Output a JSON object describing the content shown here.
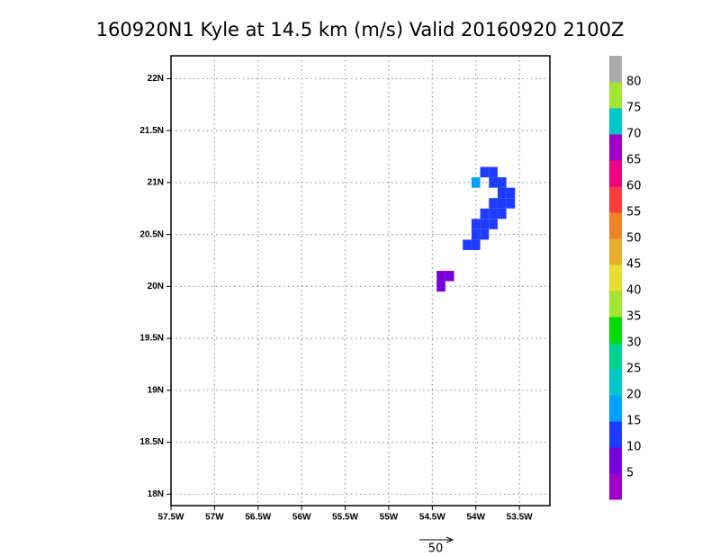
{
  "chart_data": {
    "type": "grid-map",
    "title": "160920N1 Kyle at 14.5 km (m/s) Valid 20160920 2100Z",
    "xlim": [
      -57.5,
      -53.15
    ],
    "ylim": [
      17.89,
      22.22
    ],
    "xticks": [
      {
        "value": -57.5,
        "label": "57.5W"
      },
      {
        "value": -57,
        "label": "57W"
      },
      {
        "value": -56.5,
        "label": "56.5W"
      },
      {
        "value": -56,
        "label": "56W"
      },
      {
        "value": -55.5,
        "label": "55.5W"
      },
      {
        "value": -55,
        "label": "55W"
      },
      {
        "value": -54.5,
        "label": "54.5W"
      },
      {
        "value": -54,
        "label": "54W"
      },
      {
        "value": -53.5,
        "label": "53.5W"
      }
    ],
    "yticks": [
      {
        "value": 18,
        "label": "18N"
      },
      {
        "value": 18.5,
        "label": "18.5N"
      },
      {
        "value": 19,
        "label": "19N"
      },
      {
        "value": 19.5,
        "label": "19.5N"
      },
      {
        "value": 20,
        "label": "20N"
      },
      {
        "value": 20.5,
        "label": "20.5N"
      },
      {
        "value": 21,
        "label": "21N"
      },
      {
        "value": 21.5,
        "label": "21.5N"
      },
      {
        "value": 22,
        "label": "22N"
      }
    ],
    "grid": true,
    "cells": {
      "lon": [
        -54.4,
        -54.3,
        -54.4,
        -54.1,
        -54.0,
        -54.0,
        -53.9,
        -54.0,
        -53.9,
        -53.8,
        -53.9,
        -53.8,
        -53.7,
        -53.8,
        -53.7,
        -53.6,
        -53.7,
        -53.6,
        -53.8,
        -53.7,
        -54.0,
        -53.9,
        -53.8
      ],
      "lat": [
        20.1,
        20.1,
        20.0,
        20.4,
        20.4,
        20.5,
        20.5,
        20.6,
        20.6,
        20.6,
        20.7,
        20.7,
        20.7,
        20.8,
        20.8,
        20.8,
        20.9,
        20.9,
        21.0,
        21.0,
        21.0,
        21.1,
        21.1
      ],
      "values": [
        8,
        8,
        8,
        12,
        12,
        12,
        12,
        12,
        12,
        12,
        12,
        12,
        12,
        12,
        12,
        12,
        12,
        12,
        12,
        12,
        17,
        12,
        12
      ]
    },
    "colorbar": {
      "levels": [
        5,
        10,
        15,
        20,
        25,
        30,
        35,
        40,
        45,
        50,
        55,
        60,
        65,
        70,
        75,
        80
      ],
      "colors": [
        "#a000c8",
        "#7800dc",
        "#1e3cff",
        "#00a0ff",
        "#00c8c8",
        "#00d28c",
        "#00dc00",
        "#a0e632",
        "#e6dc32",
        "#e6af2d",
        "#f08228",
        "#fa3c3c",
        "#f00082",
        "#a000c8",
        "#00c8c8",
        "#a0e632",
        "#aaaaaa"
      ]
    },
    "vector_scale": 50
  }
}
